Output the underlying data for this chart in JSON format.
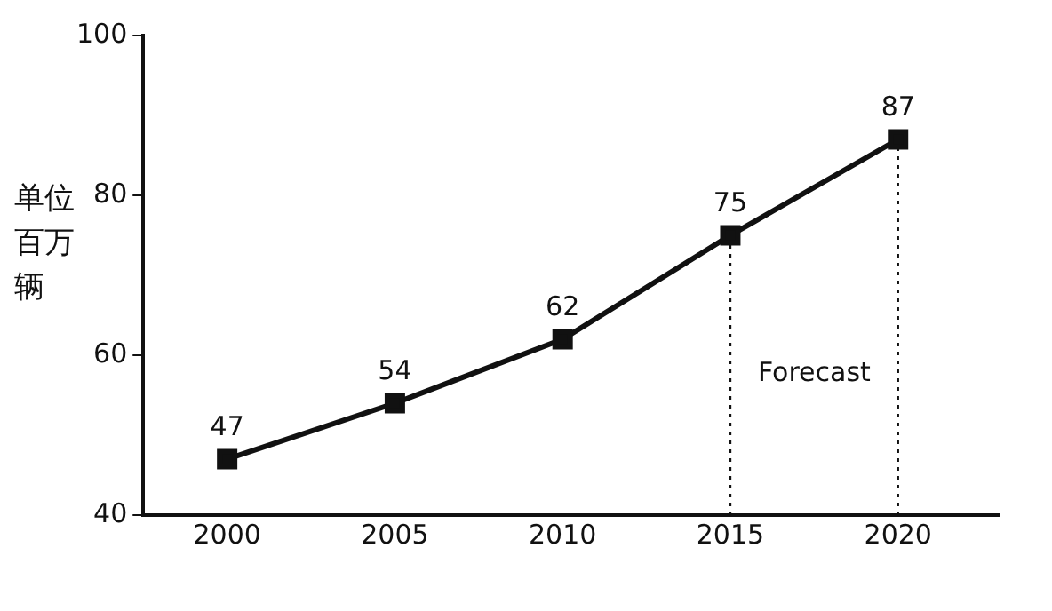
{
  "chart_data": {
    "type": "line",
    "ylabel": "单位百万辆",
    "x": [
      2000,
      2005,
      2010,
      2015,
      2020
    ],
    "series": [
      {
        "color": "#111111",
        "values": [
          47,
          54,
          62,
          75,
          87
        ]
      }
    ],
    "xlim": [
      1997.5,
      2023
    ],
    "xticks": [
      2000,
      2005,
      2010,
      2015,
      2020
    ],
    "ylim": [
      40,
      100
    ],
    "yticks": [
      40,
      60,
      80,
      100
    ],
    "grid": false,
    "legend": false,
    "marker": "square",
    "line_style": "solid",
    "data_labels": true,
    "ref_lines": [
      {
        "axis": "x",
        "value": 2015,
        "line_style": "dotted",
        "color": "#111111"
      },
      {
        "axis": "x",
        "value": 2020,
        "line_style": "dotted",
        "color": "#111111"
      }
    ],
    "annotations": [
      "Forecast"
    ]
  }
}
